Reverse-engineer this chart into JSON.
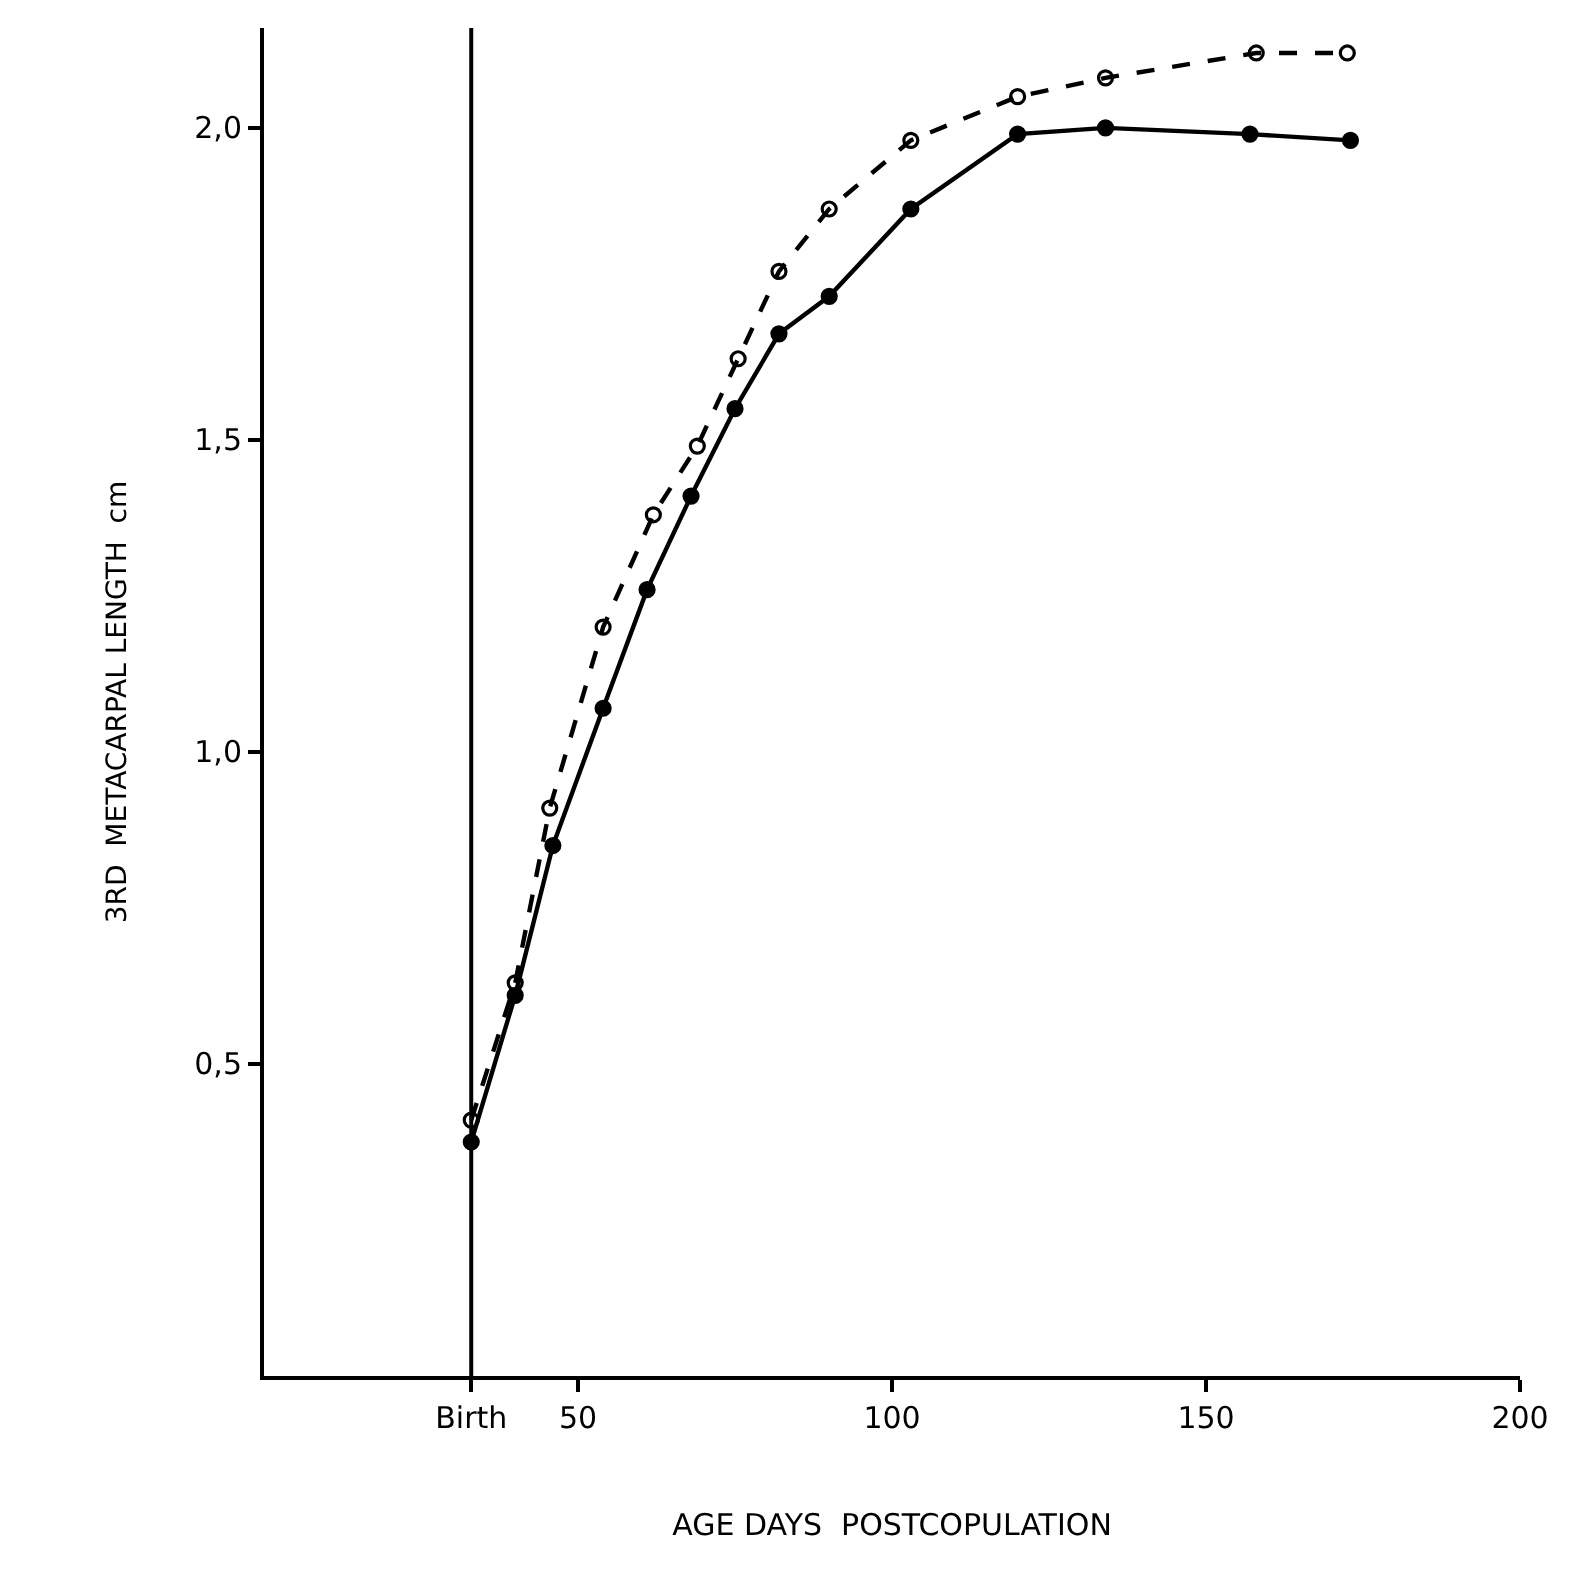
{
  "chart_data": {
    "type": "line",
    "xlabel": "AGE DAYS  POSTCOPULATION",
    "ylabel": "3RD  METACARPAL LENGTH  cm",
    "xlim": [
      0,
      200
    ],
    "xticks": [
      {
        "value": 33,
        "label": "Birth"
      },
      50,
      100,
      150,
      200
    ],
    "ylim": [
      0,
      2.16
    ],
    "yticks": [
      {
        "value": 0.5,
        "label": "0,5"
      },
      {
        "value": 1.0,
        "label": "1,0"
      },
      {
        "value": 1.5,
        "label": "1,5"
      },
      {
        "value": 2.0,
        "label": "2,0"
      }
    ],
    "grid": false,
    "marker": "circle",
    "ref_lines": [
      {
        "axis": "x",
        "value": 33,
        "color": "#000000",
        "line_style": "solid"
      }
    ],
    "series": [
      {
        "color": "#000000",
        "line_style": "solid",
        "x": [
          33,
          40,
          46,
          54,
          61,
          68,
          75,
          82,
          90,
          103,
          120,
          134,
          157,
          173
        ],
        "values": [
          0.375,
          0.61,
          0.85,
          1.07,
          1.26,
          1.41,
          1.55,
          1.67,
          1.73,
          1.87,
          1.99,
          2.0,
          1.99,
          1.98
        ]
      },
      {
        "color": "#000000",
        "line_style": "dashed",
        "x": [
          33,
          40,
          45.5,
          54,
          62,
          69,
          75.5,
          82,
          90,
          103,
          120,
          134,
          158,
          172.5
        ],
        "values": [
          0.41,
          0.63,
          0.91,
          1.2,
          1.38,
          1.49,
          1.63,
          1.77,
          1.87,
          1.98,
          2.05,
          2.08,
          2.12,
          2.12
        ]
      }
    ]
  }
}
